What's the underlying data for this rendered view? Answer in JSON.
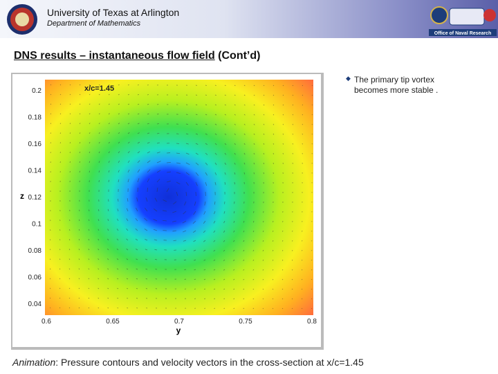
{
  "header": {
    "title": "University of Texas at Arlington",
    "subtitle": "Department of Mathematics",
    "sponsor": "Office of Naval Research"
  },
  "slide": {
    "title": "DNS results – instantaneous flow field",
    "title_suffix": "(Cont’d)"
  },
  "figure": {
    "annotation": "x/c=1.45",
    "x_label": "y",
    "y_label": "z",
    "xticks": [
      0.6,
      0.65,
      0.7,
      0.75,
      0.8
    ],
    "yticks": [
      0.2,
      0.18,
      0.16,
      0.14,
      0.12,
      0.1,
      0.08,
      0.06,
      0.04
    ]
  },
  "bullets": [
    {
      "line1": "The primary tip vortex",
      "line2": "becomes more stable ."
    }
  ],
  "caption": {
    "lead": "Animation",
    "text": ": Pressure contours and velocity vectors in the cross-section at x/c=1.45"
  }
}
